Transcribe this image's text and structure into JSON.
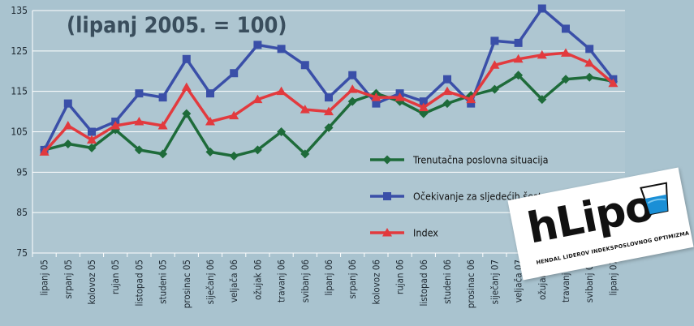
{
  "chart_data": {
    "type": "line",
    "title": "(lipanj 2005. = 100)",
    "ylim": [
      75,
      135
    ],
    "yticks": [
      75,
      85,
      95,
      105,
      115,
      125,
      135
    ],
    "grid": true,
    "legend_position": "center-right",
    "categories": [
      "lipanj 05",
      "srpanj 05",
      "kolovoz 05",
      "rujan 05",
      "listopad 05",
      "studeni 05",
      "prosinac 05",
      "siječanj 06",
      "veljača 06",
      "ožujak 06",
      "travanj 06",
      "svibanj 06",
      "lipanj 06",
      "srpanj 06",
      "kolovoz 06",
      "rujan 06",
      "listopad 06",
      "studeni 06",
      "prosinac 06",
      "siječanj 07",
      "veljača 07",
      "ožujak 07",
      "travanj 07",
      "svibanj 07",
      "lipanj 07"
    ],
    "series": [
      {
        "name": "Trenutačna poslovna situacija",
        "color": "#1e6b3a",
        "marker": "diamond",
        "values": [
          100.5,
          102,
          101,
          105.5,
          100.5,
          99.5,
          109.5,
          100,
          99,
          100.5,
          105,
          99.5,
          106,
          112.5,
          114.5,
          112.5,
          109.5,
          112,
          114,
          115.5,
          119,
          113,
          118,
          118.5,
          117.5
        ]
      },
      {
        "name": "Očekivanje za sljedećih šest mjeseci",
        "color": "#3a4fa8",
        "marker": "square",
        "values": [
          100.5,
          112,
          105,
          107.5,
          114.5,
          113.5,
          123,
          114.5,
          119.5,
          126.5,
          125.5,
          121.5,
          113.5,
          119,
          112,
          114.5,
          112.5,
          118,
          112,
          127.5,
          127,
          135.5,
          130.5,
          125.5,
          118
        ]
      },
      {
        "name": "Index",
        "color": "#e23a3e",
        "marker": "triangle",
        "values": [
          100,
          106.5,
          103,
          106.5,
          107.5,
          106.5,
          116,
          107.5,
          109,
          113,
          115,
          110.5,
          110,
          115.5,
          113.5,
          113.5,
          111,
          115,
          113,
          121.5,
          123,
          124,
          124.5,
          122,
          117
        ]
      }
    ]
  },
  "logo": {
    "word": "hLipo",
    "sub_left": "HENDAL LIDEROV INDEKS",
    "sub_right": "POSLOVNOG OPTIMIZMA",
    "glass_color": "#1a8fd6"
  }
}
